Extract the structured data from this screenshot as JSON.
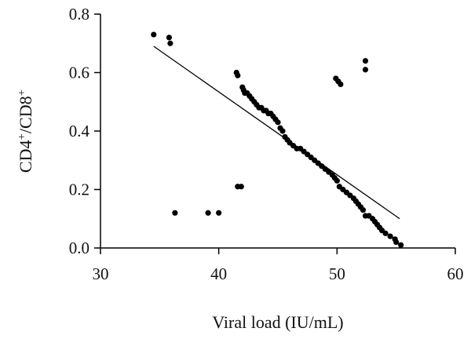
{
  "chart_data": {
    "type": "scatter",
    "title": "",
    "xlabel": "Viral load (IU/mL)",
    "ylabel_main": "CD4",
    "ylabel_sup1": "+",
    "ylabel_sep": "/CD8",
    "ylabel_sup2": "+",
    "xlim": [
      30,
      60
    ],
    "ylim": [
      0,
      0.8
    ],
    "xticks": [
      30,
      40,
      50,
      60
    ],
    "xtick_labels": [
      "30",
      "40",
      "50",
      "60"
    ],
    "yticks": [
      0,
      0.2,
      0.4,
      0.6,
      0.8
    ],
    "ytick_labels": [
      "0.0",
      "0.2",
      "0.4",
      "0.6",
      "0.8"
    ],
    "grid": false,
    "marker_color": "#000000",
    "trend_line": {
      "x": [
        34.5,
        55.3
      ],
      "y": [
        0.69,
        0.1
      ]
    },
    "points": [
      {
        "x": 34.5,
        "y": 0.73
      },
      {
        "x": 35.8,
        "y": 0.72
      },
      {
        "x": 35.9,
        "y": 0.7
      },
      {
        "x": 36.3,
        "y": 0.12
      },
      {
        "x": 39.1,
        "y": 0.12
      },
      {
        "x": 40.0,
        "y": 0.12
      },
      {
        "x": 41.5,
        "y": 0.6
      },
      {
        "x": 41.6,
        "y": 0.59
      },
      {
        "x": 41.6,
        "y": 0.21
      },
      {
        "x": 41.9,
        "y": 0.21
      },
      {
        "x": 42.0,
        "y": 0.55
      },
      {
        "x": 42.1,
        "y": 0.54
      },
      {
        "x": 42.2,
        "y": 0.53
      },
      {
        "x": 42.4,
        "y": 0.53
      },
      {
        "x": 42.6,
        "y": 0.52
      },
      {
        "x": 42.8,
        "y": 0.51
      },
      {
        "x": 43.0,
        "y": 0.5
      },
      {
        "x": 43.2,
        "y": 0.49
      },
      {
        "x": 43.4,
        "y": 0.48
      },
      {
        "x": 43.6,
        "y": 0.48
      },
      {
        "x": 43.8,
        "y": 0.47
      },
      {
        "x": 44.0,
        "y": 0.47
      },
      {
        "x": 44.2,
        "y": 0.46
      },
      {
        "x": 44.4,
        "y": 0.46
      },
      {
        "x": 44.6,
        "y": 0.45
      },
      {
        "x": 44.8,
        "y": 0.44
      },
      {
        "x": 45.0,
        "y": 0.43
      },
      {
        "x": 45.2,
        "y": 0.41
      },
      {
        "x": 45.4,
        "y": 0.4
      },
      {
        "x": 45.6,
        "y": 0.38
      },
      {
        "x": 45.8,
        "y": 0.37
      },
      {
        "x": 46.0,
        "y": 0.36
      },
      {
        "x": 46.3,
        "y": 0.35
      },
      {
        "x": 46.6,
        "y": 0.34
      },
      {
        "x": 46.9,
        "y": 0.34
      },
      {
        "x": 47.2,
        "y": 0.33
      },
      {
        "x": 47.5,
        "y": 0.32
      },
      {
        "x": 47.8,
        "y": 0.31
      },
      {
        "x": 48.1,
        "y": 0.3
      },
      {
        "x": 48.4,
        "y": 0.29
      },
      {
        "x": 48.7,
        "y": 0.28
      },
      {
        "x": 49.0,
        "y": 0.27
      },
      {
        "x": 49.3,
        "y": 0.26
      },
      {
        "x": 49.6,
        "y": 0.25
      },
      {
        "x": 49.8,
        "y": 0.24
      },
      {
        "x": 50.0,
        "y": 0.23
      },
      {
        "x": 50.2,
        "y": 0.21
      },
      {
        "x": 50.5,
        "y": 0.2
      },
      {
        "x": 50.8,
        "y": 0.19
      },
      {
        "x": 51.1,
        "y": 0.18
      },
      {
        "x": 51.4,
        "y": 0.17
      },
      {
        "x": 51.6,
        "y": 0.16
      },
      {
        "x": 51.8,
        "y": 0.15
      },
      {
        "x": 52.0,
        "y": 0.14
      },
      {
        "x": 52.2,
        "y": 0.13
      },
      {
        "x": 52.4,
        "y": 0.11
      },
      {
        "x": 52.7,
        "y": 0.11
      },
      {
        "x": 53.0,
        "y": 0.1
      },
      {
        "x": 53.2,
        "y": 0.09
      },
      {
        "x": 53.4,
        "y": 0.08
      },
      {
        "x": 53.6,
        "y": 0.07
      },
      {
        "x": 53.8,
        "y": 0.06
      },
      {
        "x": 54.1,
        "y": 0.05
      },
      {
        "x": 54.5,
        "y": 0.04
      },
      {
        "x": 54.9,
        "y": 0.03
      },
      {
        "x": 49.9,
        "y": 0.58
      },
      {
        "x": 50.1,
        "y": 0.57
      },
      {
        "x": 50.3,
        "y": 0.56
      },
      {
        "x": 52.4,
        "y": 0.64
      },
      {
        "x": 52.4,
        "y": 0.61
      },
      {
        "x": 55.0,
        "y": 0.02
      },
      {
        "x": 55.4,
        "y": 0.01
      }
    ]
  }
}
